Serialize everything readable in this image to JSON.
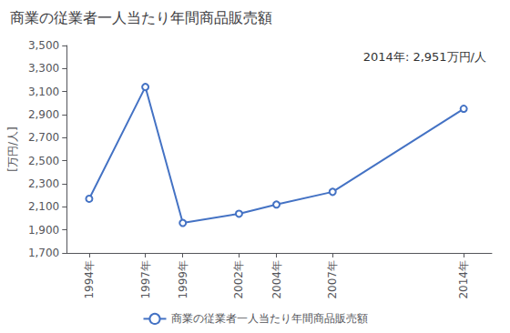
{
  "chart_data": {
    "type": "line",
    "title": "商業の従業者一人当たり年間商品販売額",
    "ylabel": "[万円/人]",
    "annotation": "2014年: 2,951万円/人",
    "x": [
      1994,
      1997,
      1999,
      2002,
      2004,
      2007,
      2014
    ],
    "xlim": [
      1992.8,
      2015.5
    ],
    "xticks": [
      {
        "value": 1994,
        "label": "1994年"
      },
      {
        "value": 1997,
        "label": "1997年"
      },
      {
        "value": 1999,
        "label": "1999年"
      },
      {
        "value": 2002,
        "label": "2002年"
      },
      {
        "value": 2004,
        "label": "2004年"
      },
      {
        "value": 2007,
        "label": "2007年"
      },
      {
        "value": 2014,
        "label": "2014年"
      }
    ],
    "series": [
      {
        "name": "商業の従業者一人当たり年間商品販売額",
        "color": "#4472C4",
        "marker": "circle",
        "values": [
          2170,
          3140,
          1960,
          2040,
          2120,
          2230,
          2951
        ]
      }
    ],
    "ylim": [
      1700,
      3500
    ],
    "yticks": [
      {
        "value": 1700,
        "label": "1,700"
      },
      {
        "value": 1900,
        "label": "1,900"
      },
      {
        "value": 2100,
        "label": "2,100"
      },
      {
        "value": 2300,
        "label": "2,300"
      },
      {
        "value": 2500,
        "label": "2,500"
      },
      {
        "value": 2700,
        "label": "2,700"
      },
      {
        "value": 2900,
        "label": "2,900"
      },
      {
        "value": 3100,
        "label": "3,100"
      },
      {
        "value": 3300,
        "label": "3,300"
      },
      {
        "value": 3500,
        "label": "3,500"
      }
    ],
    "grid": false,
    "legend": "bottom"
  }
}
